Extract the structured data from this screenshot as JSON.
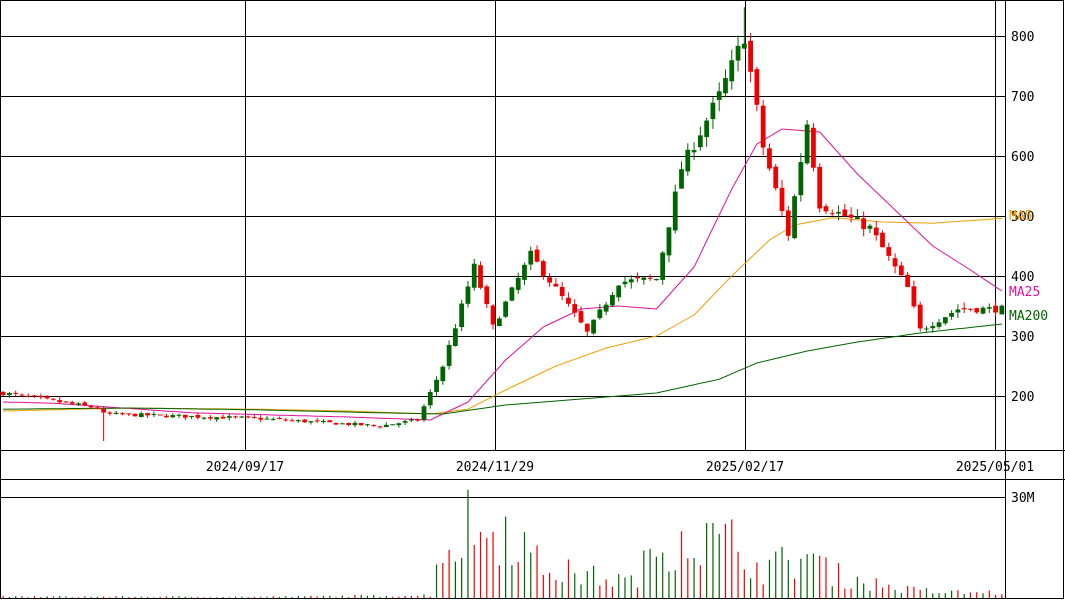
{
  "chart_data": {
    "type": "candlestick",
    "x_ticks": [
      "2024/09/17",
      "2024/11/29",
      "2025/02/17",
      "2025/05/01"
    ],
    "price_axis": {
      "ticks": [
        "200",
        "300",
        "400",
        "500",
        "600",
        "700",
        "800"
      ],
      "ylim": [
        110,
        860
      ]
    },
    "volume_axis": {
      "ticks": [
        "30M"
      ],
      "ylim": [
        0,
        35
      ]
    },
    "legend": [
      {
        "label": "MA5",
        "color": "#f0a000"
      },
      {
        "label": "MA25",
        "color": "#e0129b"
      },
      {
        "label": "MA200",
        "color": "#006400"
      }
    ],
    "colors": {
      "up": "#006400",
      "down": "#ee0000",
      "grid": "#000000",
      "background": "#ffffff"
    },
    "bars": {
      "count": 160,
      "first": "2024-07",
      "last": "2025-05"
    },
    "ohlc_keypoints": [
      {
        "bar": 0,
        "close": 205
      },
      {
        "bar": 15,
        "close": 180
      },
      {
        "bar": 16,
        "low": 125,
        "close": 170
      },
      {
        "bar": 40,
        "close": 163
      },
      {
        "bar": 60,
        "close": 150
      },
      {
        "bar": 66,
        "close": 160
      },
      {
        "bar": 70,
        "close": 250
      },
      {
        "bar": 75,
        "close": 415
      },
      {
        "bar": 78,
        "close": 315
      },
      {
        "bar": 84,
        "close": 435
      },
      {
        "bar": 90,
        "close": 350
      },
      {
        "bar": 93,
        "close": 305
      },
      {
        "bar": 98,
        "close": 390
      },
      {
        "bar": 104,
        "close": 395
      },
      {
        "bar": 108,
        "close": 580
      },
      {
        "bar": 114,
        "close": 700
      },
      {
        "bar": 118,
        "high": 848,
        "close": 800
      },
      {
        "bar": 121,
        "close": 615
      },
      {
        "bar": 125,
        "close": 470
      },
      {
        "bar": 128,
        "close": 655
      },
      {
        "bar": 130,
        "close": 520
      },
      {
        "bar": 138,
        "close": 480
      },
      {
        "bar": 144,
        "close": 380
      },
      {
        "bar": 146,
        "close": 310
      },
      {
        "bar": 152,
        "close": 345
      },
      {
        "bar": 159,
        "close": 345
      }
    ],
    "ma25": [
      [
        0,
        190
      ],
      [
        8,
        188
      ],
      [
        30,
        172
      ],
      [
        55,
        165
      ],
      [
        68,
        160
      ],
      [
        74,
        190
      ],
      [
        80,
        260
      ],
      [
        86,
        315
      ],
      [
        92,
        345
      ],
      [
        98,
        350
      ],
      [
        104,
        345
      ],
      [
        110,
        415
      ],
      [
        116,
        545
      ],
      [
        120,
        620
      ],
      [
        124,
        645
      ],
      [
        130,
        640
      ],
      [
        136,
        570
      ],
      [
        142,
        510
      ],
      [
        148,
        450
      ],
      [
        154,
        410
      ],
      [
        159,
        375
      ]
    ],
    "ma75": [
      [
        0,
        175
      ],
      [
        20,
        180
      ],
      [
        40,
        178
      ],
      [
        55,
        175
      ],
      [
        68,
        170
      ],
      [
        74,
        178
      ],
      [
        80,
        210
      ],
      [
        88,
        250
      ],
      [
        96,
        280
      ],
      [
        104,
        300
      ],
      [
        110,
        335
      ],
      [
        116,
        400
      ],
      [
        122,
        460
      ],
      [
        126,
        485
      ],
      [
        132,
        497
      ],
      [
        140,
        490
      ],
      [
        148,
        488
      ],
      [
        159,
        496
      ]
    ],
    "ma200": [
      [
        0,
        178
      ],
      [
        20,
        180
      ],
      [
        40,
        177
      ],
      [
        60,
        172
      ],
      [
        70,
        170
      ],
      [
        80,
        185
      ],
      [
        92,
        195
      ],
      [
        104,
        205
      ],
      [
        114,
        228
      ],
      [
        120,
        255
      ],
      [
        128,
        275
      ],
      [
        136,
        290
      ],
      [
        146,
        305
      ],
      [
        159,
        320
      ]
    ],
    "volume_keypoints": [
      {
        "bar": 0,
        "v": 0.5
      },
      {
        "bar": 40,
        "v": 0.4
      },
      {
        "bar": 68,
        "v": 1
      },
      {
        "bar": 70,
        "v": 22
      },
      {
        "bar": 72,
        "v": 18
      },
      {
        "bar": 74,
        "v": 28
      },
      {
        "bar": 75,
        "v": 32
      },
      {
        "bar": 76,
        "v": 20
      },
      {
        "bar": 78,
        "v": 28
      },
      {
        "bar": 82,
        "v": 25
      },
      {
        "bar": 84,
        "v": 14
      },
      {
        "bar": 88,
        "v": 10
      },
      {
        "bar": 94,
        "v": 8
      },
      {
        "bar": 100,
        "v": 6
      },
      {
        "bar": 105,
        "v": 20
      },
      {
        "bar": 108,
        "v": 25
      },
      {
        "bar": 111,
        "v": 22
      },
      {
        "bar": 114,
        "v": 20
      },
      {
        "bar": 118,
        "v": 20
      },
      {
        "bar": 120,
        "v": 11
      },
      {
        "bar": 123,
        "v": 12
      },
      {
        "bar": 126,
        "v": 14
      },
      {
        "bar": 128,
        "v": 16
      },
      {
        "bar": 132,
        "v": 9
      },
      {
        "bar": 137,
        "v": 6
      },
      {
        "bar": 144,
        "v": 3
      },
      {
        "bar": 150,
        "v": 2
      },
      {
        "bar": 159,
        "v": 2
      }
    ]
  }
}
